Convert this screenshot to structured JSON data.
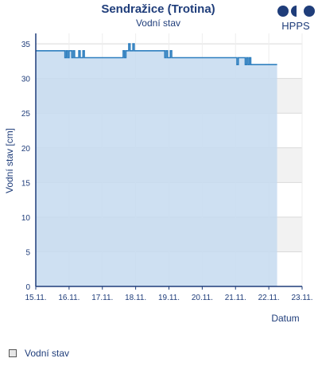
{
  "header": {
    "title": "Sendražice (Trotina)",
    "subtitle": "Vodní stav",
    "logo_text": "HPPS"
  },
  "legend": {
    "label": "Vodní stav"
  },
  "colors": {
    "line": "#2f7fbf",
    "fill": "#c5dbf0",
    "band": "#f2f2f2",
    "axis": "#1f3d7a",
    "grid": "#d9d9d9"
  },
  "chart_data": {
    "type": "area",
    "title": "Sendražice (Trotina)",
    "subtitle": "Vodní stav",
    "xlabel": "Datum",
    "ylabel": "Vodní stav [cm]",
    "x_unit": "days",
    "x_ticks": [
      "15.11.",
      "16.11.",
      "17.11.",
      "18.11.",
      "19.11.",
      "20.11.",
      "21.11.",
      "22.11.",
      "23.11."
    ],
    "y_ticks": [
      0,
      5,
      10,
      15,
      20,
      25,
      30,
      35
    ],
    "xlim": [
      "15.11.",
      "23.11."
    ],
    "ylim": [
      0,
      36.5
    ],
    "grid": true,
    "legend_position": "bottom-left",
    "series": [
      {
        "name": "Vodní stav",
        "points": [
          [
            "15.11. 00:00",
            34
          ],
          [
            "15.11. 20:00",
            34
          ],
          [
            "15.11. 21:00",
            33
          ],
          [
            "15.11. 22:00",
            34
          ],
          [
            "15.11. 23:00",
            33
          ],
          [
            "16.11. 00:00",
            34
          ],
          [
            "16.11. 02:00",
            33
          ],
          [
            "16.11. 03:00",
            34
          ],
          [
            "16.11. 04:00",
            33
          ],
          [
            "16.11. 06:00",
            33
          ],
          [
            "16.11. 07:00",
            34
          ],
          [
            "16.11. 08:00",
            33
          ],
          [
            "16.11. 10:00",
            34
          ],
          [
            "16.11. 11:00",
            33
          ],
          [
            "17.11. 14:00",
            33
          ],
          [
            "17.11. 15:00",
            34
          ],
          [
            "17.11. 16:00",
            33
          ],
          [
            "17.11. 17:00",
            34
          ],
          [
            "17.11. 18:00",
            34
          ],
          [
            "17.11. 19:00",
            35
          ],
          [
            "17.11. 20:00",
            34
          ],
          [
            "17.11. 22:00",
            35
          ],
          [
            "17.11. 23:00",
            34
          ],
          [
            "18.11. 20:00",
            34
          ],
          [
            "18.11. 21:00",
            33
          ],
          [
            "18.11. 22:00",
            34
          ],
          [
            "18.11. 23:00",
            33
          ],
          [
            "19.11. 01:00",
            34
          ],
          [
            "19.11. 02:00",
            33
          ],
          [
            "21.11. 00:00",
            33
          ],
          [
            "21.11. 01:00",
            32
          ],
          [
            "21.11. 02:00",
            33
          ],
          [
            "21.11. 06:00",
            33
          ],
          [
            "21.11. 07:00",
            32
          ],
          [
            "21.11. 08:00",
            33
          ],
          [
            "21.11. 09:00",
            32
          ],
          [
            "21.11. 10:00",
            33
          ],
          [
            "21.11. 11:00",
            32
          ],
          [
            "22.11. 06:00",
            32
          ]
        ]
      }
    ]
  }
}
